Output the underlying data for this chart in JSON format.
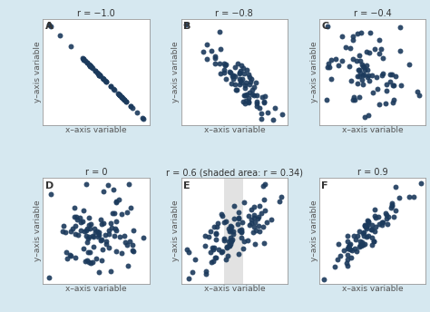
{
  "background_color": "#d6e8f0",
  "panel_bg": "#ffffff",
  "dot_color": "#1b3a5c",
  "dot_size": 18,
  "dot_alpha": 0.9,
  "panels": [
    {
      "label": "A",
      "r": -1.0,
      "title": "r = −1.0",
      "shaded": false,
      "n": 60
    },
    {
      "label": "B",
      "r": -0.8,
      "title": "r = −0.8",
      "shaded": false,
      "n": 80
    },
    {
      "label": "C",
      "r": -0.4,
      "title": "r = −0.4",
      "shaded": false,
      "n": 80
    },
    {
      "label": "D",
      "r": 0.0,
      "title": "r = 0",
      "shaded": false,
      "n": 100
    },
    {
      "label": "E",
      "r": 0.6,
      "title": "r = 0.6 (shaded area: r = 0.34)",
      "shaded": true,
      "n": 100
    },
    {
      "label": "F",
      "r": 0.9,
      "title": "r = 0.9",
      "shaded": false,
      "n": 80
    }
  ],
  "xlabel": "x–axis variable",
  "ylabel": "y–axis variable",
  "title_fontsize": 7.0,
  "label_fontsize": 8,
  "axis_label_fontsize": 6.5,
  "shade_color": "#c0c0c0",
  "shade_alpha": 0.45,
  "seed": 42
}
